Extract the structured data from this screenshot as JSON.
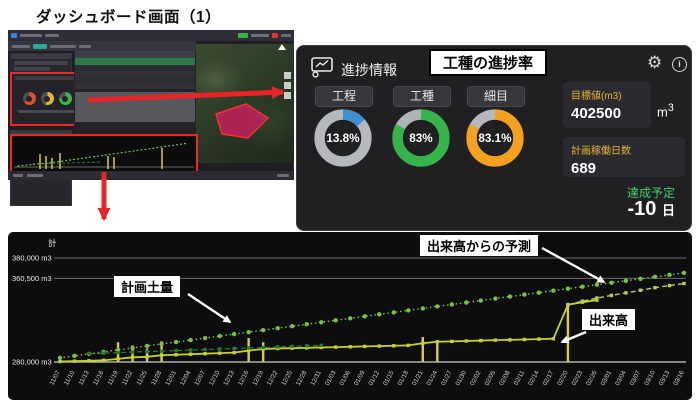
{
  "page": {
    "title": "ダッシュボード画面（1）"
  },
  "progress_panel": {
    "title": "進捗情報",
    "overlay_label": "工種の進捗率",
    "gear_icon": "⚙",
    "info_icon": "i",
    "donuts": [
      {
        "label": "工程",
        "percent": 13.8,
        "percent_label": "13.8%",
        "color": "#3f8fd2",
        "track": "#b5b9bd"
      },
      {
        "label": "工種",
        "percent": 83,
        "percent_label": "83%",
        "color": "#35b44a",
        "track": "#b0b4b8"
      },
      {
        "label": "細目",
        "percent": 83.1,
        "percent_label": "83.1%",
        "color": "#f5a01e",
        "track": "#b5b9bd"
      }
    ],
    "stats": [
      {
        "label": "目標値(m3)",
        "value": "402500",
        "unit": {
          "base": "m",
          "exp": "3"
        }
      },
      {
        "label": "計画稼働日数",
        "value": "689"
      }
    ],
    "forecast": {
      "label": "達成予定",
      "label_color": "#43d06a",
      "value": "-10",
      "unit": "日"
    }
  },
  "chart_data": {
    "type": "line",
    "corner_label": "計",
    "ylim": [
      280000,
      380000
    ],
    "gridlines": [
      {
        "value": 380000,
        "label": "380,000 m3"
      },
      {
        "value": 360500,
        "label": "360,500 m3"
      },
      {
        "value": 280000,
        "label": "280,000 m3"
      }
    ],
    "x": [
      "11/07",
      "11/10",
      "11/13",
      "11/16",
      "11/19",
      "11/22",
      "11/25",
      "11/28",
      "12/01",
      "12/04",
      "12/07",
      "12/10",
      "12/13",
      "12/16",
      "12/19",
      "12/22",
      "12/25",
      "12/28",
      "12/31",
      "01/03",
      "01/06",
      "01/09",
      "01/12",
      "01/15",
      "01/18",
      "01/21",
      "01/24",
      "01/27",
      "01/30",
      "02/02",
      "02/05",
      "02/08",
      "02/11",
      "02/14",
      "02/17",
      "02/20",
      "02/23",
      "02/26",
      "03/01",
      "03/04",
      "03/07",
      "03/10",
      "03/13",
      "03/16"
    ],
    "series": [
      {
        "name": "計画土量",
        "color": "#7ac143",
        "style": "dotted",
        "marker": "circle",
        "width": 1.6,
        "values": [
          284000,
          285900,
          287800,
          289700,
          291600,
          293500,
          295400,
          297300,
          299200,
          301100,
          303000,
          304900,
          306800,
          308700,
          310600,
          312500,
          314400,
          316300,
          318200,
          320100,
          322000,
          323900,
          325800,
          327700,
          329600,
          331500,
          333400,
          335300,
          337200,
          339100,
          341000,
          342900,
          344800,
          346700,
          348600,
          350500,
          352400,
          354300,
          356200,
          358100,
          360000,
          361900,
          363800,
          365700
        ]
      },
      {
        "name": "出来高",
        "color": "#c3d32c",
        "style": "solid",
        "marker": "square",
        "width": 1.8,
        "values": [
          280500,
          280800,
          281200,
          281600,
          283000,
          284500,
          285000,
          286500,
          287000,
          287500,
          288000,
          288500,
          289000,
          291000,
          292500,
          293000,
          293300,
          293600,
          294000,
          294300,
          294600,
          295000,
          295300,
          295600,
          296000,
          298000,
          299500,
          299800,
          300200,
          300600,
          301000,
          301300,
          301600,
          302000,
          302400,
          335000,
          337500,
          339500
        ]
      },
      {
        "name": "出来高からの予測",
        "color": "#b9cc5e",
        "style": "dashed",
        "marker": "square",
        "width": 1.4,
        "start_index": 35,
        "values": [
          335000,
          338500,
          341500,
          344000,
          346500,
          349000,
          351500,
          353500,
          355500
        ]
      },
      {
        "name": "",
        "color": "#2d7a35",
        "style": "dashed",
        "marker": "square",
        "width": 1.2,
        "start_index": 2,
        "values": [
          288000,
          288500,
          289000,
          289500,
          290000,
          290500,
          291000,
          291500,
          292000,
          292500,
          293000,
          293500,
          294000,
          294500,
          295000,
          295500,
          296000
        ]
      }
    ],
    "bars": {
      "color": "#d6ce3e",
      "points": [
        {
          "date": "11/19",
          "value": 299000
        },
        {
          "date": "11/22",
          "value": 296000
        },
        {
          "date": "11/25",
          "value": 293000
        },
        {
          "date": "11/28",
          "value": 300000
        },
        {
          "date": "12/16",
          "value": 303000
        },
        {
          "date": "12/19",
          "value": 299000
        },
        {
          "date": "01/21",
          "value": 304000
        },
        {
          "date": "01/24",
          "value": 301000
        },
        {
          "date": "02/20",
          "value": 337000
        }
      ]
    },
    "annotations": [
      {
        "text": "計画土量"
      },
      {
        "text": "出来高からの予測"
      },
      {
        "text": "出来高"
      }
    ]
  }
}
